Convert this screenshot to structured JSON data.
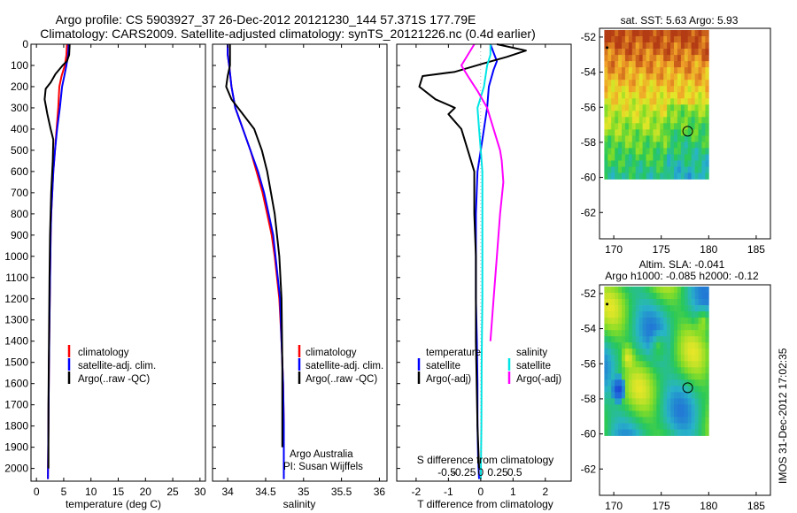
{
  "header": {
    "line1": "Argo profile: CS 5903927_37 26-Dec-2012 20121230_144 57.371S 177.79E",
    "line2": "Climatology: CARS2009. Satellite-adjusted climatology: synTS_20121226.nc (0.4d earlier)"
  },
  "side_label": "IMOS 31-Dec-2012 17:02:35",
  "colors": {
    "climatology": "#ff0000",
    "satellite": "#0000ff",
    "argo": "#000000",
    "sal_satellite": "#00e5e5",
    "sal_argo": "#ff00ff"
  },
  "chart_data": [
    {
      "type": "line",
      "id": "temperature",
      "xlabel": "temperature (deg C)",
      "xlim": [
        -1,
        31
      ],
      "ylim": [
        0,
        2060
      ],
      "xticks": [
        0,
        5,
        10,
        15,
        20,
        25,
        30
      ],
      "yticks": [
        0,
        100,
        200,
        300,
        400,
        500,
        600,
        700,
        800,
        900,
        1000,
        1100,
        1200,
        1300,
        1400,
        1500,
        1600,
        1700,
        1800,
        1900,
        2000
      ],
      "legend": [
        "climatology",
        "satellite-adj. clim.",
        "Argo(..raw -QC)"
      ],
      "series": [
        {
          "name": "climatology",
          "color": "#ff0000",
          "x": [
            5.6,
            5.5,
            5.2,
            4.6,
            4.2,
            4.0,
            3.7,
            3.4,
            3.1,
            2.9,
            2.7,
            2.6,
            2.55,
            2.5,
            2.4,
            2.3,
            2.2,
            2.1
          ],
          "y": [
            0,
            50,
            100,
            150,
            200,
            300,
            400,
            500,
            600,
            700,
            800,
            900,
            1000,
            1100,
            1300,
            1500,
            1800,
            2050
          ]
        },
        {
          "name": "satellite-adj. clim.",
          "color": "#0000ff",
          "x": [
            5.9,
            5.8,
            5.5,
            5.1,
            4.7,
            4.3,
            3.8,
            3.4,
            3.1,
            2.9,
            2.7,
            2.6,
            2.55,
            2.5,
            2.4,
            2.3,
            2.2,
            2.1
          ],
          "y": [
            0,
            50,
            100,
            150,
            200,
            300,
            400,
            500,
            600,
            700,
            800,
            900,
            1000,
            1100,
            1300,
            1500,
            1800,
            2050
          ]
        },
        {
          "name": "Argo(..raw -QC)",
          "color": "#000000",
          "x": [
            6.1,
            6.0,
            5.6,
            4.8,
            3.5,
            2.6,
            1.7,
            1.5,
            2.0,
            2.6,
            3.1,
            3.0,
            2.7,
            2.5,
            2.4,
            2.3,
            2.2,
            2.2
          ],
          "y": [
            0,
            50,
            80,
            100,
            140,
            180,
            210,
            260,
            330,
            400,
            450,
            550,
            700,
            900,
            1100,
            1400,
            1700,
            2000
          ]
        }
      ]
    },
    {
      "type": "line",
      "id": "salinity",
      "xlabel": "salinity",
      "xlim": [
        33.8,
        36.1
      ],
      "ylim": [
        0,
        2060
      ],
      "xticks": [
        34,
        34.5,
        35,
        35.5,
        36
      ],
      "xticklabels": [
        "34",
        "34.5",
        "35",
        "35.5",
        "36"
      ],
      "legend": [
        "climatology",
        "satellite-adj. clim.",
        "Argo(..raw -QC)"
      ],
      "annotations": [
        "Argo Australia",
        "PI: Susan Wijffels"
      ],
      "series": [
        {
          "name": "climatology",
          "color": "#ff0000",
          "x": [
            34.0,
            34.0,
            34.02,
            34.05,
            34.1,
            34.2,
            34.3,
            34.38,
            34.46,
            34.52,
            34.58,
            34.62,
            34.65,
            34.68,
            34.71,
            34.73,
            34.74,
            34.74
          ],
          "y": [
            0,
            50,
            100,
            200,
            300,
            400,
            500,
            600,
            700,
            800,
            900,
            1000,
            1100,
            1200,
            1400,
            1600,
            1800,
            2050
          ]
        },
        {
          "name": "satellite-adj. clim.",
          "color": "#0000ff",
          "x": [
            34.0,
            34.0,
            34.02,
            34.05,
            34.1,
            34.2,
            34.3,
            34.4,
            34.48,
            34.54,
            34.6,
            34.63,
            34.66,
            34.69,
            34.71,
            34.73,
            34.74,
            34.74
          ],
          "y": [
            0,
            50,
            100,
            200,
            300,
            400,
            500,
            600,
            700,
            800,
            900,
            1000,
            1100,
            1200,
            1400,
            1600,
            1800,
            2050
          ]
        },
        {
          "name": "Argo(..raw -QC)",
          "color": "#000000",
          "x": [
            34.03,
            34.03,
            34.03,
            34.0,
            33.98,
            34.05,
            34.2,
            34.35,
            34.45,
            34.52,
            34.57,
            34.62,
            34.65,
            34.68,
            34.71,
            34.72,
            34.72
          ],
          "y": [
            0,
            50,
            100,
            150,
            200,
            260,
            330,
            400,
            500,
            600,
            700,
            800,
            900,
            1000,
            1200,
            1500,
            1900
          ]
        }
      ]
    },
    {
      "type": "line",
      "id": "difference",
      "xlabel": "T difference from climatology",
      "xlabel_top": "S difference from climatology",
      "xlim": [
        -2.6,
        2.8
      ],
      "ylim": [
        0,
        2060
      ],
      "xticks": [
        -2,
        -1,
        0,
        1,
        2
      ],
      "xticks_top": [
        -0.5,
        -0.25,
        0,
        0.25,
        0.5
      ],
      "xticklabels_top": [
        "-0.5",
        "-0.25",
        "0",
        "0.25",
        "0.5"
      ],
      "legend_groups": [
        "temperature",
        "salinity"
      ],
      "legend": [
        "satellite",
        "Argo(-adj)",
        "satellite",
        "Argo(-adj)"
      ],
      "series": [
        {
          "name": "satellite",
          "group": "temperature",
          "color": "#0000ff",
          "x": [
            0.3,
            0.4,
            0.5,
            0.4,
            0.25,
            0.2,
            0.1,
            0.0,
            -0.1,
            -0.15,
            -0.15,
            -0.15,
            -0.12,
            -0.1,
            -0.1,
            -0.08,
            -0.05
          ],
          "y": [
            0,
            40,
            80,
            120,
            200,
            300,
            400,
            500,
            600,
            800,
            1000,
            1200,
            1400,
            1600,
            1800,
            1950,
            2050
          ]
        },
        {
          "name": "Argo(-adj)",
          "group": "temperature",
          "color": "#000000",
          "x": [
            0.5,
            1.4,
            0.8,
            0.1,
            -0.8,
            -1.8,
            -1.9,
            -1.4,
            -0.8,
            -1.0,
            -0.6,
            -0.4,
            -0.2,
            -0.2,
            -0.15,
            -0.15,
            -0.1,
            -0.05
          ],
          "y": [
            0,
            30,
            60,
            90,
            130,
            150,
            200,
            260,
            300,
            330,
            400,
            500,
            600,
            800,
            1000,
            1400,
            1800,
            2000
          ]
        },
        {
          "name": "satellite",
          "group": "salinity",
          "color": "#00e5e5",
          "x": [
            0.3,
            0.3,
            0.2,
            0.1,
            -0.1,
            -0.05,
            0.0,
            0.05,
            0.05,
            0.05,
            0.05,
            0.05,
            0.03,
            0.02,
            0.0
          ],
          "y": [
            0,
            50,
            100,
            200,
            300,
            400,
            500,
            600,
            700,
            800,
            1000,
            1200,
            1500,
            1800,
            2050
          ]
        },
        {
          "name": "Argo(-adj)",
          "group": "salinity",
          "color": "#ff00ff",
          "x": [
            -0.2,
            -0.4,
            -0.6,
            -0.4,
            -0.1,
            0.2,
            0.4,
            0.6,
            0.65,
            0.7,
            0.6,
            0.5,
            0.4,
            0.3
          ],
          "y": [
            0,
            50,
            100,
            150,
            220,
            300,
            400,
            500,
            550,
            650,
            800,
            1000,
            1200,
            1400
          ]
        }
      ]
    },
    {
      "type": "heatmap",
      "id": "sst_map",
      "title": "sat. SST: 5.63 Argo: 5.93",
      "xlim": [
        168.5,
        186.5
      ],
      "ylim": [
        -63.5,
        -51.5
      ],
      "xticks": [
        170,
        175,
        180,
        185
      ],
      "yticks": [
        -52,
        -54,
        -56,
        -58,
        -60,
        -62
      ],
      "data_extent": {
        "lon": [
          169,
          180
        ],
        "lat": [
          -60.1,
          -51.6
        ]
      },
      "argo_position": {
        "lon": 177.79,
        "lat": -57.371
      }
    },
    {
      "type": "heatmap",
      "id": "sla_map",
      "title": "Altim. SLA: -0.041",
      "subtitle": "Argo h1000: -0.085 h2000: -0.12",
      "xlim": [
        168.5,
        186.5
      ],
      "ylim": [
        -63.5,
        -51.5
      ],
      "xticks": [
        170,
        175,
        180,
        185
      ],
      "yticks": [
        -52,
        -54,
        -56,
        -58,
        -60,
        -62
      ],
      "data_extent": {
        "lon": [
          169,
          180
        ],
        "lat": [
          -60.1,
          -51.6
        ]
      },
      "argo_position": {
        "lon": 177.79,
        "lat": -57.371
      }
    }
  ]
}
